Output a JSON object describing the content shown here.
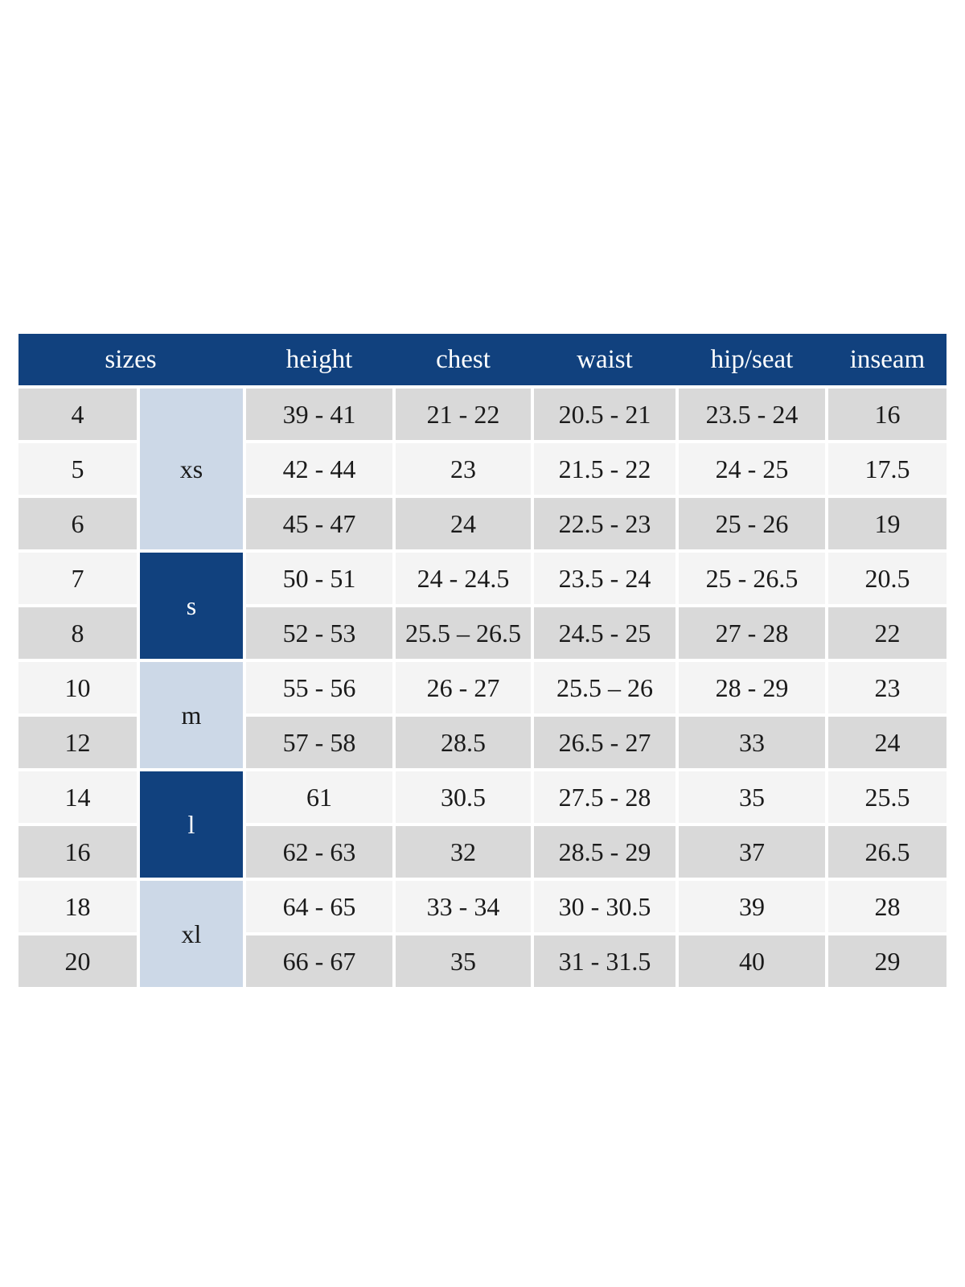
{
  "colors": {
    "header-bg": "#11417e",
    "header-text": "#ffffff",
    "label-light-bg": "#ccd8e7",
    "label-dark-bg": "#11417e",
    "row-dark": "#d9d9d9",
    "row-light": "#f4f4f4",
    "body-text": "#1a1a1a",
    "page-bg": "#ffffff"
  },
  "table": {
    "headers": [
      "sizes",
      "height",
      "chest",
      "waist",
      "hip/seat",
      "inseam"
    ],
    "groups": [
      {
        "label": "xs",
        "rows": [
          {
            "size": "4",
            "height": "39 - 41",
            "chest": "21 - 22",
            "waist": "20.5 - 21",
            "hip_seat": "23.5 - 24",
            "inseam": "16"
          },
          {
            "size": "5",
            "height": "42 - 44",
            "chest": "23",
            "waist": "21.5 - 22",
            "hip_seat": "24 - 25",
            "inseam": "17.5"
          },
          {
            "size": "6",
            "height": "45 - 47",
            "chest": "24",
            "waist": "22.5 - 23",
            "hip_seat": "25 - 26",
            "inseam": "19"
          }
        ]
      },
      {
        "label": "s",
        "rows": [
          {
            "size": "7",
            "height": "50 - 51",
            "chest": "24 - 24.5",
            "waist": "23.5 - 24",
            "hip_seat": "25 - 26.5",
            "inseam": "20.5"
          },
          {
            "size": "8",
            "height": "52 - 53",
            "chest": "25.5 – 26.5",
            "waist": "24.5 - 25",
            "hip_seat": "27 - 28",
            "inseam": "22"
          }
        ]
      },
      {
        "label": "m",
        "rows": [
          {
            "size": "10",
            "height": "55 - 56",
            "chest": "26 - 27",
            "waist": "25.5 – 26",
            "hip_seat": "28 - 29",
            "inseam": "23"
          },
          {
            "size": "12",
            "height": "57 - 58",
            "chest": "28.5",
            "waist": "26.5 - 27",
            "hip_seat": "33",
            "inseam": "24"
          }
        ]
      },
      {
        "label": "l",
        "rows": [
          {
            "size": "14",
            "height": "61",
            "chest": "30.5",
            "waist": "27.5 - 28",
            "hip_seat": "35",
            "inseam": "25.5"
          },
          {
            "size": "16",
            "height": "62 - 63",
            "chest": "32",
            "waist": "28.5 - 29",
            "hip_seat": "37",
            "inseam": "26.5"
          }
        ]
      },
      {
        "label": "xl",
        "rows": [
          {
            "size": "18",
            "height": "64 - 65",
            "chest": "33 - 34",
            "waist": "30 - 30.5",
            "hip_seat": "39",
            "inseam": "28"
          },
          {
            "size": "20",
            "height": "66 - 67",
            "chest": "35",
            "waist": "31 - 31.5",
            "hip_seat": "40",
            "inseam": "29"
          }
        ]
      }
    ]
  }
}
